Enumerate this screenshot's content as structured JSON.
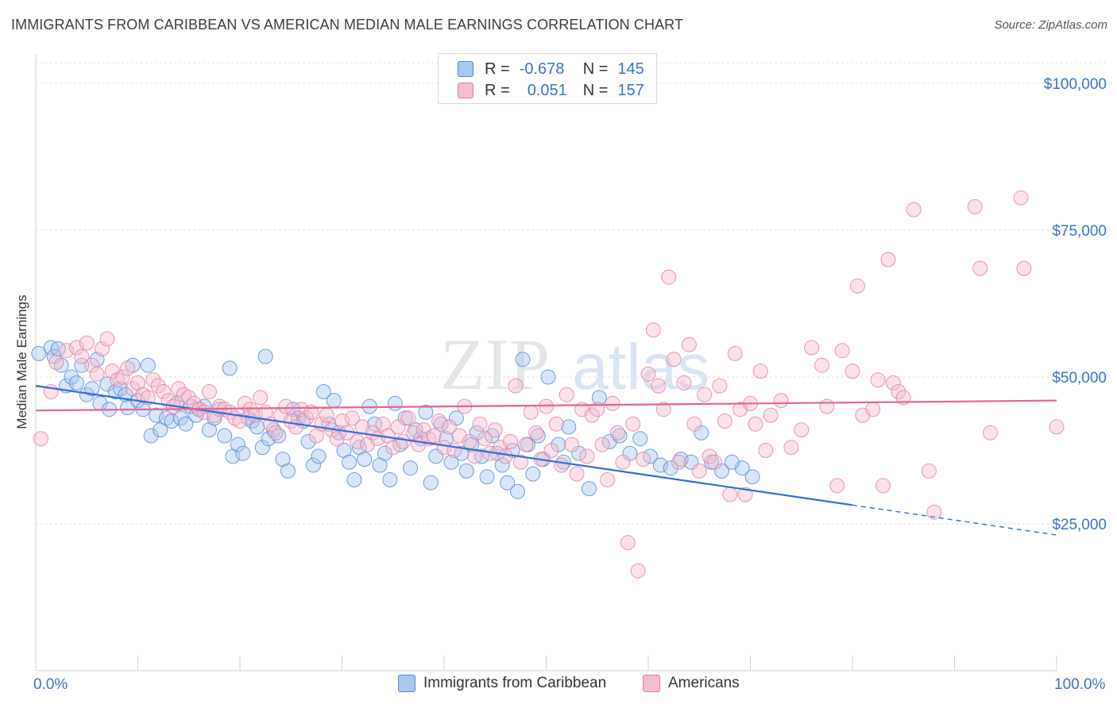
{
  "title": "IMMIGRANTS FROM CARIBBEAN VS AMERICAN MEDIAN MALE EARNINGS CORRELATION CHART",
  "source": "Source: ZipAtlas.com",
  "watermark": {
    "zip": "ZIP",
    "atlas": "atlas"
  },
  "legend": {
    "r_label": "R =",
    "n_label": "N =",
    "rows": [
      {
        "r": "-0.678",
        "n": "145"
      },
      {
        "r": "0.051",
        "n": "157"
      }
    ]
  },
  "colors": {
    "blue_fill": "#a9c8f0",
    "blue_stroke": "#4d86d4",
    "blue_line": "#2f6fd6",
    "pink_fill": "#f6bcd0",
    "pink_stroke": "#e07ca1",
    "pink_line": "#e8638e",
    "axis_text": "#3b73c8",
    "grid": "#dcdcdc"
  },
  "chart_data": {
    "type": "scatter",
    "title": "IMMIGRANTS FROM CARIBBEAN VS AMERICAN MEDIAN MALE EARNINGS CORRELATION CHART",
    "xlabel": "",
    "ylabel": "Median Male Earnings",
    "xlim": [
      0,
      100
    ],
    "ylim": [
      0,
      105000
    ],
    "x_tick_labels": [
      "0.0%",
      "100.0%"
    ],
    "y_ticks": [
      25000,
      50000,
      75000,
      100000
    ],
    "y_tick_labels": [
      "$25,000",
      "$50,000",
      "$75,000",
      "$100,000"
    ],
    "series": [
      {
        "name": "Immigrants from Caribbean",
        "color": "blue",
        "r": -0.678,
        "n": 145,
        "trend": {
          "x0": 0,
          "y0": 48500,
          "x1": 80,
          "y1": 28200,
          "dash_to": 100,
          "dash_y": 23100
        },
        "points": [
          [
            0.3,
            54000
          ],
          [
            1.5,
            55000
          ],
          [
            1.8,
            53500
          ],
          [
            2.2,
            54800
          ],
          [
            2.5,
            52000
          ],
          [
            3.0,
            48500
          ],
          [
            3.5,
            50000
          ],
          [
            4.0,
            49000
          ],
          [
            4.5,
            52000
          ],
          [
            5.0,
            47000
          ],
          [
            5.5,
            48000
          ],
          [
            6.0,
            53000
          ],
          [
            6.3,
            45500
          ],
          [
            7.0,
            48800
          ],
          [
            7.2,
            44500
          ],
          [
            7.8,
            47500
          ],
          [
            8.3,
            48000
          ],
          [
            8.8,
            47000
          ],
          [
            9.0,
            44800
          ],
          [
            9.5,
            52000
          ],
          [
            10.0,
            46000
          ],
          [
            10.5,
            44500
          ],
          [
            11.0,
            52000
          ],
          [
            11.3,
            40000
          ],
          [
            11.8,
            43500
          ],
          [
            12.2,
            41000
          ],
          [
            12.8,
            43000
          ],
          [
            13.3,
            42500
          ],
          [
            13.8,
            45500
          ],
          [
            14.2,
            43000
          ],
          [
            14.7,
            42000
          ],
          [
            15.2,
            45000
          ],
          [
            15.7,
            43500
          ],
          [
            16.0,
            44500
          ],
          [
            16.5,
            45000
          ],
          [
            17.0,
            41000
          ],
          [
            17.5,
            43000
          ],
          [
            18.0,
            44500
          ],
          [
            18.5,
            40000
          ],
          [
            19.0,
            51500
          ],
          [
            19.3,
            36500
          ],
          [
            19.8,
            38500
          ],
          [
            20.3,
            37000
          ],
          [
            20.8,
            43000
          ],
          [
            21.2,
            42500
          ],
          [
            21.7,
            41500
          ],
          [
            22.2,
            38000
          ],
          [
            22.5,
            53500
          ],
          [
            22.8,
            39500
          ],
          [
            23.3,
            41000
          ],
          [
            23.8,
            40000
          ],
          [
            24.2,
            36000
          ],
          [
            24.7,
            34000
          ],
          [
            25.2,
            44500
          ],
          [
            25.7,
            43000
          ],
          [
            26.2,
            42500
          ],
          [
            26.7,
            39000
          ],
          [
            27.2,
            35000
          ],
          [
            27.7,
            36500
          ],
          [
            28.2,
            47500
          ],
          [
            28.7,
            42000
          ],
          [
            29.2,
            46000
          ],
          [
            29.7,
            40500
          ],
          [
            30.2,
            37500
          ],
          [
            30.7,
            35500
          ],
          [
            31.2,
            32500
          ],
          [
            31.7,
            38000
          ],
          [
            32.2,
            36000
          ],
          [
            32.7,
            45000
          ],
          [
            33.2,
            42000
          ],
          [
            33.7,
            35000
          ],
          [
            34.2,
            37000
          ],
          [
            34.7,
            32500
          ],
          [
            35.2,
            45500
          ],
          [
            35.7,
            38500
          ],
          [
            36.2,
            43000
          ],
          [
            36.7,
            34500
          ],
          [
            37.2,
            41000
          ],
          [
            37.7,
            39500
          ],
          [
            38.2,
            44000
          ],
          [
            38.7,
            32000
          ],
          [
            39.2,
            36500
          ],
          [
            39.7,
            42000
          ],
          [
            40.2,
            39500
          ],
          [
            40.7,
            35500
          ],
          [
            41.2,
            43000
          ],
          [
            41.7,
            37000
          ],
          [
            42.2,
            34000
          ],
          [
            42.7,
            38500
          ],
          [
            43.2,
            40500
          ],
          [
            43.7,
            36500
          ],
          [
            44.2,
            33000
          ],
          [
            44.7,
            40000
          ],
          [
            45.2,
            37000
          ],
          [
            45.7,
            35000
          ],
          [
            46.2,
            32000
          ],
          [
            46.7,
            37500
          ],
          [
            47.2,
            30500
          ],
          [
            47.7,
            53000
          ],
          [
            48.2,
            38500
          ],
          [
            48.7,
            33500
          ],
          [
            49.2,
            40000
          ],
          [
            49.7,
            36000
          ],
          [
            50.2,
            50000
          ],
          [
            51.2,
            38500
          ],
          [
            51.7,
            35500
          ],
          [
            52.2,
            41500
          ],
          [
            53.2,
            37000
          ],
          [
            54.2,
            31000
          ],
          [
            55.2,
            46500
          ],
          [
            56.2,
            39000
          ],
          [
            57.2,
            40000
          ],
          [
            58.2,
            37000
          ],
          [
            59.2,
            39500
          ],
          [
            60.2,
            36500
          ],
          [
            61.2,
            35000
          ],
          [
            62.2,
            34500
          ],
          [
            63.2,
            36000
          ],
          [
            64.2,
            35500
          ],
          [
            66.2,
            35500
          ],
          [
            67.2,
            34000
          ],
          [
            69.2,
            34500
          ],
          [
            70.2,
            33000
          ],
          [
            65.2,
            40500
          ],
          [
            68.2,
            35500
          ]
        ]
      },
      {
        "name": "Americans",
        "color": "pink",
        "r": 0.051,
        "n": 157,
        "trend": {
          "x0": 0,
          "y0": 44300,
          "x1": 100,
          "y1": 46000
        },
        "points": [
          [
            0.5,
            39500
          ],
          [
            1.5,
            47500
          ],
          [
            2.0,
            52500
          ],
          [
            3.0,
            54500
          ],
          [
            4.0,
            55000
          ],
          [
            4.5,
            53500
          ],
          [
            5.0,
            55800
          ],
          [
            5.5,
            52000
          ],
          [
            6.0,
            50500
          ],
          [
            6.5,
            54800
          ],
          [
            7.0,
            56500
          ],
          [
            7.5,
            51000
          ],
          [
            8.0,
            49500
          ],
          [
            8.5,
            50000
          ],
          [
            9.0,
            51500
          ],
          [
            9.5,
            48000
          ],
          [
            10.0,
            49000
          ],
          [
            10.5,
            47000
          ],
          [
            11.0,
            46500
          ],
          [
            11.5,
            49500
          ],
          [
            12.0,
            48500
          ],
          [
            12.5,
            47500
          ],
          [
            13.0,
            46000
          ],
          [
            13.5,
            45000
          ],
          [
            14.0,
            48000
          ],
          [
            14.5,
            47000
          ],
          [
            15.0,
            46500
          ],
          [
            15.5,
            45500
          ],
          [
            16.0,
            44500
          ],
          [
            16.5,
            44000
          ],
          [
            17.0,
            47500
          ],
          [
            17.5,
            43500
          ],
          [
            18.0,
            45000
          ],
          [
            18.5,
            44500
          ],
          [
            19.0,
            44000
          ],
          [
            19.5,
            43000
          ],
          [
            20.0,
            42500
          ],
          [
            20.5,
            45500
          ],
          [
            21.0,
            44500
          ],
          [
            21.5,
            43500
          ],
          [
            22.0,
            46500
          ],
          [
            22.5,
            44000
          ],
          [
            23.0,
            42000
          ],
          [
            23.5,
            40500
          ],
          [
            24.0,
            43500
          ],
          [
            24.5,
            45000
          ],
          [
            25.0,
            42500
          ],
          [
            25.5,
            41500
          ],
          [
            26.0,
            44500
          ],
          [
            26.5,
            43000
          ],
          [
            27.0,
            44000
          ],
          [
            27.5,
            40000
          ],
          [
            28.0,
            42000
          ],
          [
            28.5,
            43500
          ],
          [
            29.0,
            41000
          ],
          [
            29.5,
            39500
          ],
          [
            30.0,
            42500
          ],
          [
            30.5,
            40500
          ],
          [
            31.0,
            43000
          ],
          [
            31.5,
            39000
          ],
          [
            32.0,
            41500
          ],
          [
            32.5,
            38500
          ],
          [
            33.0,
            40500
          ],
          [
            33.5,
            39500
          ],
          [
            34.0,
            42000
          ],
          [
            34.5,
            40000
          ],
          [
            35.0,
            38000
          ],
          [
            35.5,
            41500
          ],
          [
            36.0,
            39000
          ],
          [
            36.5,
            43000
          ],
          [
            37.0,
            40500
          ],
          [
            37.5,
            38500
          ],
          [
            38.0,
            41000
          ],
          [
            38.5,
            39500
          ],
          [
            39.0,
            40000
          ],
          [
            39.5,
            42500
          ],
          [
            40.0,
            38000
          ],
          [
            40.5,
            41500
          ],
          [
            41.0,
            37500
          ],
          [
            41.5,
            40000
          ],
          [
            42.0,
            45000
          ],
          [
            42.5,
            39000
          ],
          [
            43.0,
            36500
          ],
          [
            43.5,
            42000
          ],
          [
            44.0,
            39500
          ],
          [
            44.5,
            37000
          ],
          [
            45.0,
            41000
          ],
          [
            45.5,
            38000
          ],
          [
            46.0,
            36500
          ],
          [
            46.5,
            39000
          ],
          [
            47.0,
            48500
          ],
          [
            47.5,
            35500
          ],
          [
            48.0,
            38500
          ],
          [
            48.5,
            44000
          ],
          [
            49.0,
            40500
          ],
          [
            49.5,
            36000
          ],
          [
            50.0,
            45000
          ],
          [
            50.5,
            37500
          ],
          [
            51.0,
            42000
          ],
          [
            51.5,
            35000
          ],
          [
            52.0,
            47000
          ],
          [
            52.5,
            38500
          ],
          [
            53.0,
            33500
          ],
          [
            53.5,
            44500
          ],
          [
            54.0,
            36500
          ],
          [
            54.5,
            43500
          ],
          [
            55.0,
            44500
          ],
          [
            55.5,
            38500
          ],
          [
            56.0,
            32500
          ],
          [
            56.5,
            45500
          ],
          [
            57.0,
            40500
          ],
          [
            57.5,
            35500
          ],
          [
            58.0,
            21800
          ],
          [
            58.5,
            42000
          ],
          [
            59.0,
            17000
          ],
          [
            59.5,
            36000
          ],
          [
            60.0,
            50500
          ],
          [
            60.5,
            58000
          ],
          [
            61.0,
            48500
          ],
          [
            61.5,
            44500
          ],
          [
            62.0,
            67000
          ],
          [
            62.5,
            53000
          ],
          [
            63.0,
            35500
          ],
          [
            63.5,
            49000
          ],
          [
            64.0,
            55500
          ],
          [
            64.5,
            42000
          ],
          [
            65.0,
            34000
          ],
          [
            65.5,
            47000
          ],
          [
            66.0,
            36500
          ],
          [
            66.5,
            35500
          ],
          [
            67.0,
            48500
          ],
          [
            67.5,
            42500
          ],
          [
            68.0,
            30000
          ],
          [
            68.5,
            54000
          ],
          [
            69.0,
            44500
          ],
          [
            69.5,
            30000
          ],
          [
            70.0,
            45500
          ],
          [
            70.5,
            42000
          ],
          [
            71.0,
            51000
          ],
          [
            71.5,
            37500
          ],
          [
            72.0,
            43500
          ],
          [
            73.0,
            46000
          ],
          [
            74.0,
            38000
          ],
          [
            75.0,
            41000
          ],
          [
            76.0,
            55000
          ],
          [
            77.0,
            52000
          ],
          [
            77.5,
            45000
          ],
          [
            78.5,
            31500
          ],
          [
            79.0,
            54500
          ],
          [
            80.0,
            51000
          ],
          [
            80.5,
            65500
          ],
          [
            81.0,
            43500
          ],
          [
            82.0,
            44500
          ],
          [
            82.5,
            49500
          ],
          [
            83.0,
            31500
          ],
          [
            83.5,
            70000
          ],
          [
            84.0,
            49000
          ],
          [
            84.5,
            47500
          ],
          [
            85.0,
            46500
          ],
          [
            86.0,
            78500
          ],
          [
            87.5,
            34000
          ],
          [
            88.0,
            27000
          ],
          [
            92.0,
            79000
          ],
          [
            92.5,
            68500
          ],
          [
            93.5,
            40500
          ],
          [
            96.5,
            80500
          ],
          [
            96.8,
            68500
          ],
          [
            100.0,
            41500
          ]
        ]
      }
    ]
  },
  "bottom_legend": [
    "Immigrants from Caribbean",
    "Americans"
  ]
}
